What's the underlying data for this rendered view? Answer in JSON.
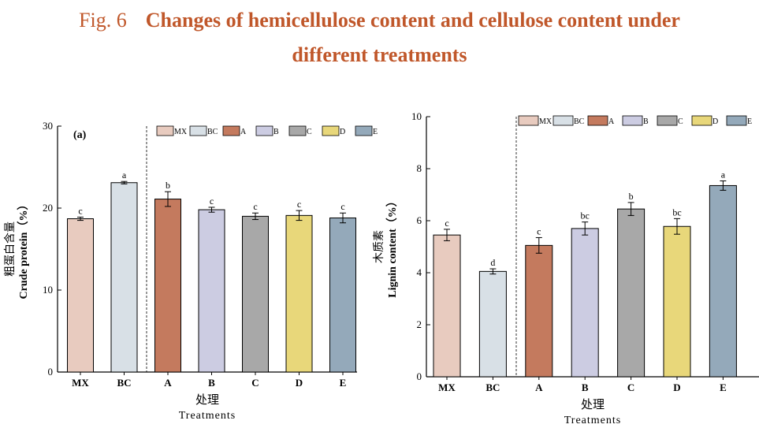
{
  "figure": {
    "label": "Fig. 6",
    "title_line1": "Changes of hemicellulose content and cellulose content under",
    "title_line2": "different treatments"
  },
  "chart_data": [
    {
      "type": "bar",
      "panel_label": "(a)",
      "ylabel_cn": "粗蛋白含量",
      "ylabel_en": "Crude protein（%）",
      "xlabel_cn": "处理",
      "xlabel_en": "Treatments",
      "ylim": [
        0,
        30
      ],
      "yticks": [
        0,
        10,
        20,
        30
      ],
      "categories": [
        "MX",
        "BC",
        "A",
        "B",
        "C",
        "D",
        "E"
      ],
      "values": [
        18.7,
        23.1,
        21.1,
        19.8,
        19.0,
        19.1,
        18.8
      ],
      "errors": [
        0.2,
        0.15,
        0.9,
        0.3,
        0.4,
        0.6,
        0.6
      ],
      "significance": [
        "c",
        "a",
        "b",
        "c",
        "c",
        "c",
        "c"
      ],
      "colors": [
        "#e8cbbf",
        "#d8e0e6",
        "#c47a5e",
        "#cccce2",
        "#a8a8a8",
        "#e8d77a",
        "#94a9ba"
      ],
      "legend_position": "top-right",
      "divider_after_category": "BC"
    },
    {
      "type": "bar",
      "ylabel_cn": "木质素",
      "ylabel_en": "Lignin content（%）",
      "xlabel_cn": "处理",
      "xlabel_en": "Treatments",
      "ylim": [
        0,
        10
      ],
      "yticks": [
        0,
        2,
        4,
        6,
        8,
        10
      ],
      "categories": [
        "MX",
        "BC",
        "A",
        "B",
        "C",
        "D",
        "E"
      ],
      "values": [
        5.45,
        4.05,
        5.05,
        5.7,
        6.45,
        5.78,
        7.35
      ],
      "errors": [
        0.22,
        0.1,
        0.3,
        0.25,
        0.25,
        0.3,
        0.18
      ],
      "significance": [
        "c",
        "d",
        "c",
        "bc",
        "b",
        "bc",
        "a"
      ],
      "colors": [
        "#e8cbbf",
        "#d8e0e6",
        "#c47a5e",
        "#cccce2",
        "#a8a8a8",
        "#e8d77a",
        "#94a9ba"
      ],
      "legend_position": "top-right",
      "divider_after_category": "BC"
    }
  ]
}
